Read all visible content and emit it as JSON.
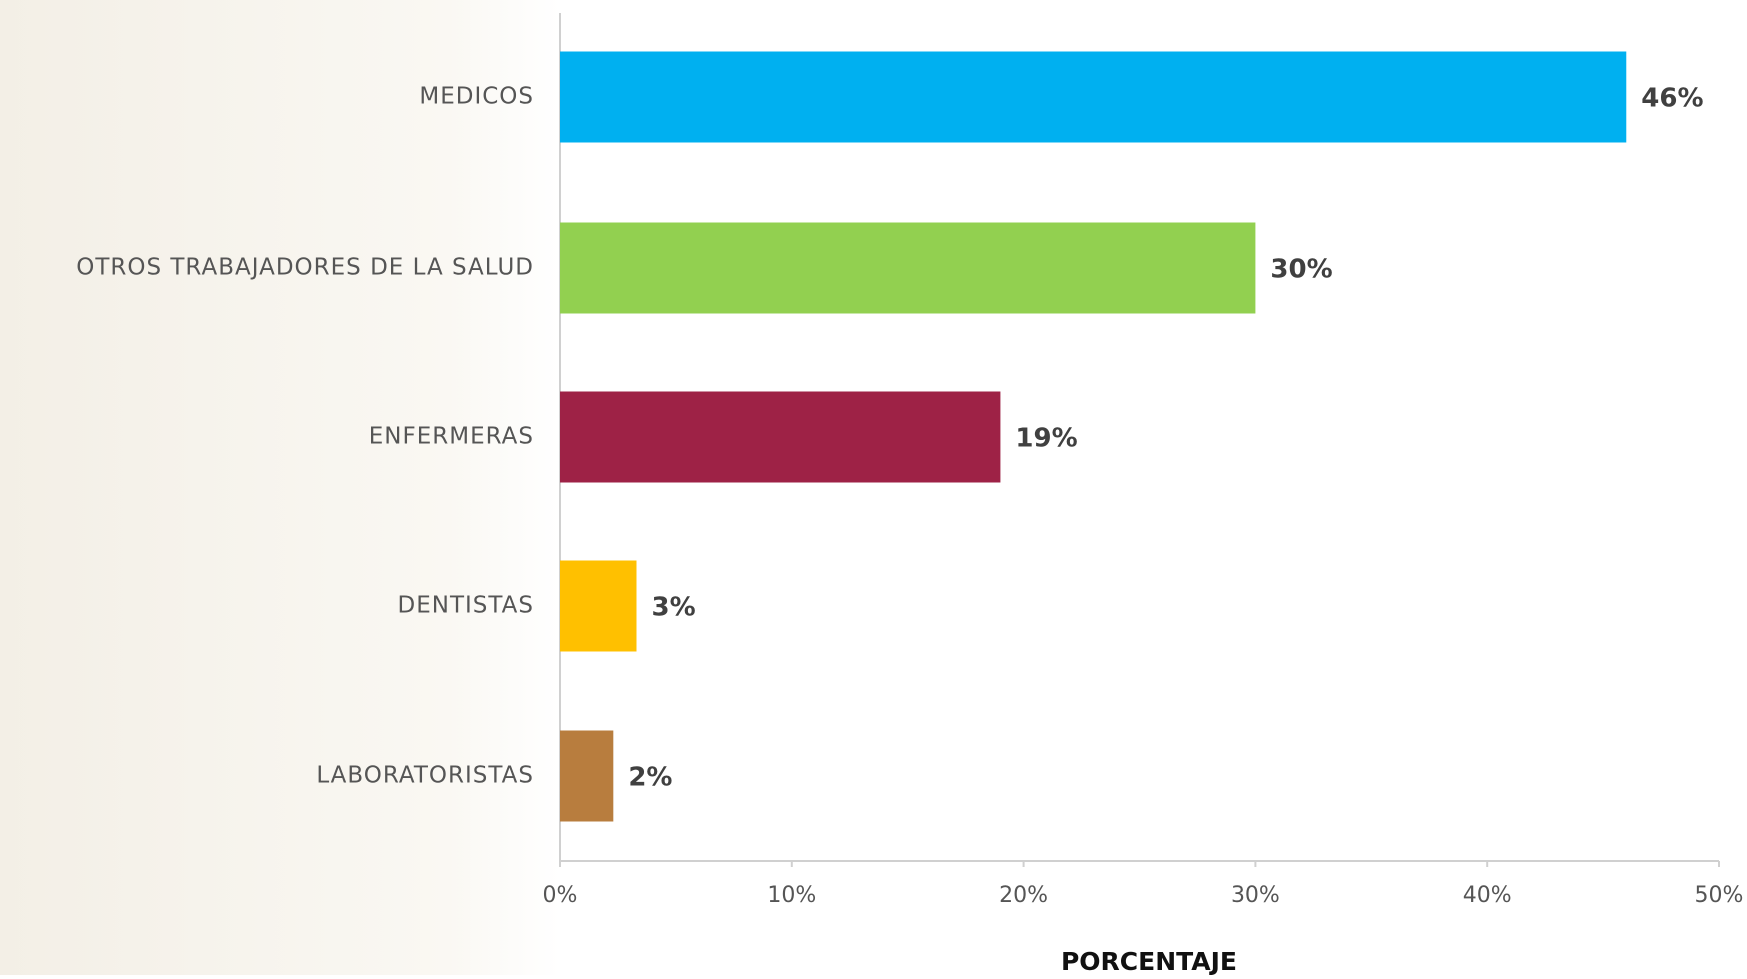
{
  "chart_data": {
    "type": "barh",
    "categories": [
      "MEDICOS",
      "OTROS TRABAJADORES DE LA SALUD",
      "ENFERMERAS",
      "DENTISTAS",
      "LABORATORISTAS"
    ],
    "values": [
      46,
      30,
      19,
      3.3,
      2.3
    ],
    "value_labels": [
      "46%",
      "30%",
      "19%",
      "3%",
      "2%"
    ],
    "colors": [
      "#00b0f0",
      "#92d050",
      "#9e2246",
      "#ffc000",
      "#b87d3e"
    ],
    "xlabel": "PORCENTAJE",
    "xlim": [
      0,
      50
    ],
    "xticks": [
      {
        "value": 0,
        "label": "0%"
      },
      {
        "value": 10,
        "label": "10%"
      },
      {
        "value": 20,
        "label": "20%"
      },
      {
        "value": 30,
        "label": "30%"
      },
      {
        "value": 40,
        "label": "40%"
      },
      {
        "value": 50,
        "label": "50%"
      }
    ],
    "grid": false
  }
}
